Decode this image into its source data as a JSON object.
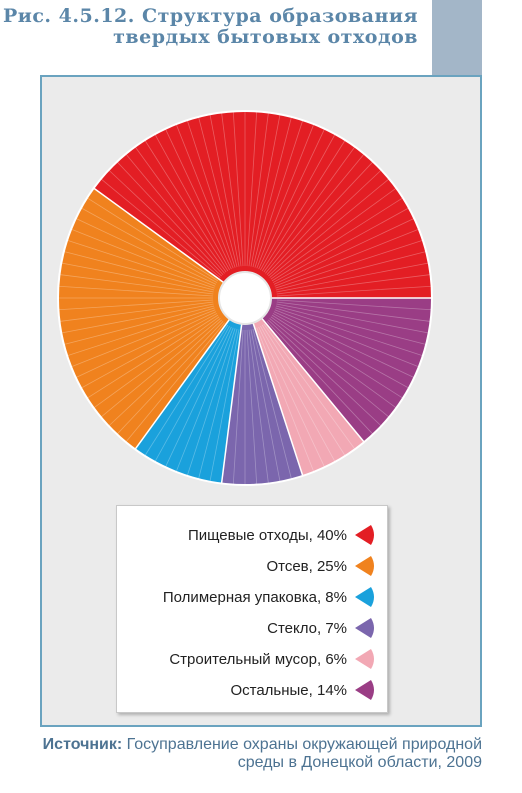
{
  "title": "Рис. 4.5.12. Структура образования твердых бытовых отходов",
  "chart_data": {
    "type": "pie",
    "title": "Рис. 4.5.12. Структура образования твердых бытовых отходов",
    "categories": [
      "Пищевые отходы",
      "Отсев",
      "Полимерная упаковка",
      "Стекло",
      "Строительный мусор",
      "Остальные"
    ],
    "values": [
      40,
      25,
      8,
      7,
      6,
      14
    ],
    "unit": "%",
    "colors": [
      "#e31e24",
      "#f0821e",
      "#1aa1dc",
      "#7b66ad",
      "#f2a8b4",
      "#9a3d85"
    ],
    "legend_placement": "bottom",
    "legend_labels": [
      "Пищевые отходы, 40%",
      "Отсев, 25%",
      "Полимерная упаковка, 8%",
      "Стекло, 7%",
      "Строительный мусор, 6%",
      "Остальные, 14%"
    ]
  },
  "source": {
    "label": "Источник:",
    "text": " Госуправление охраны окружающей природной среды в Донецкой области, 2009"
  }
}
